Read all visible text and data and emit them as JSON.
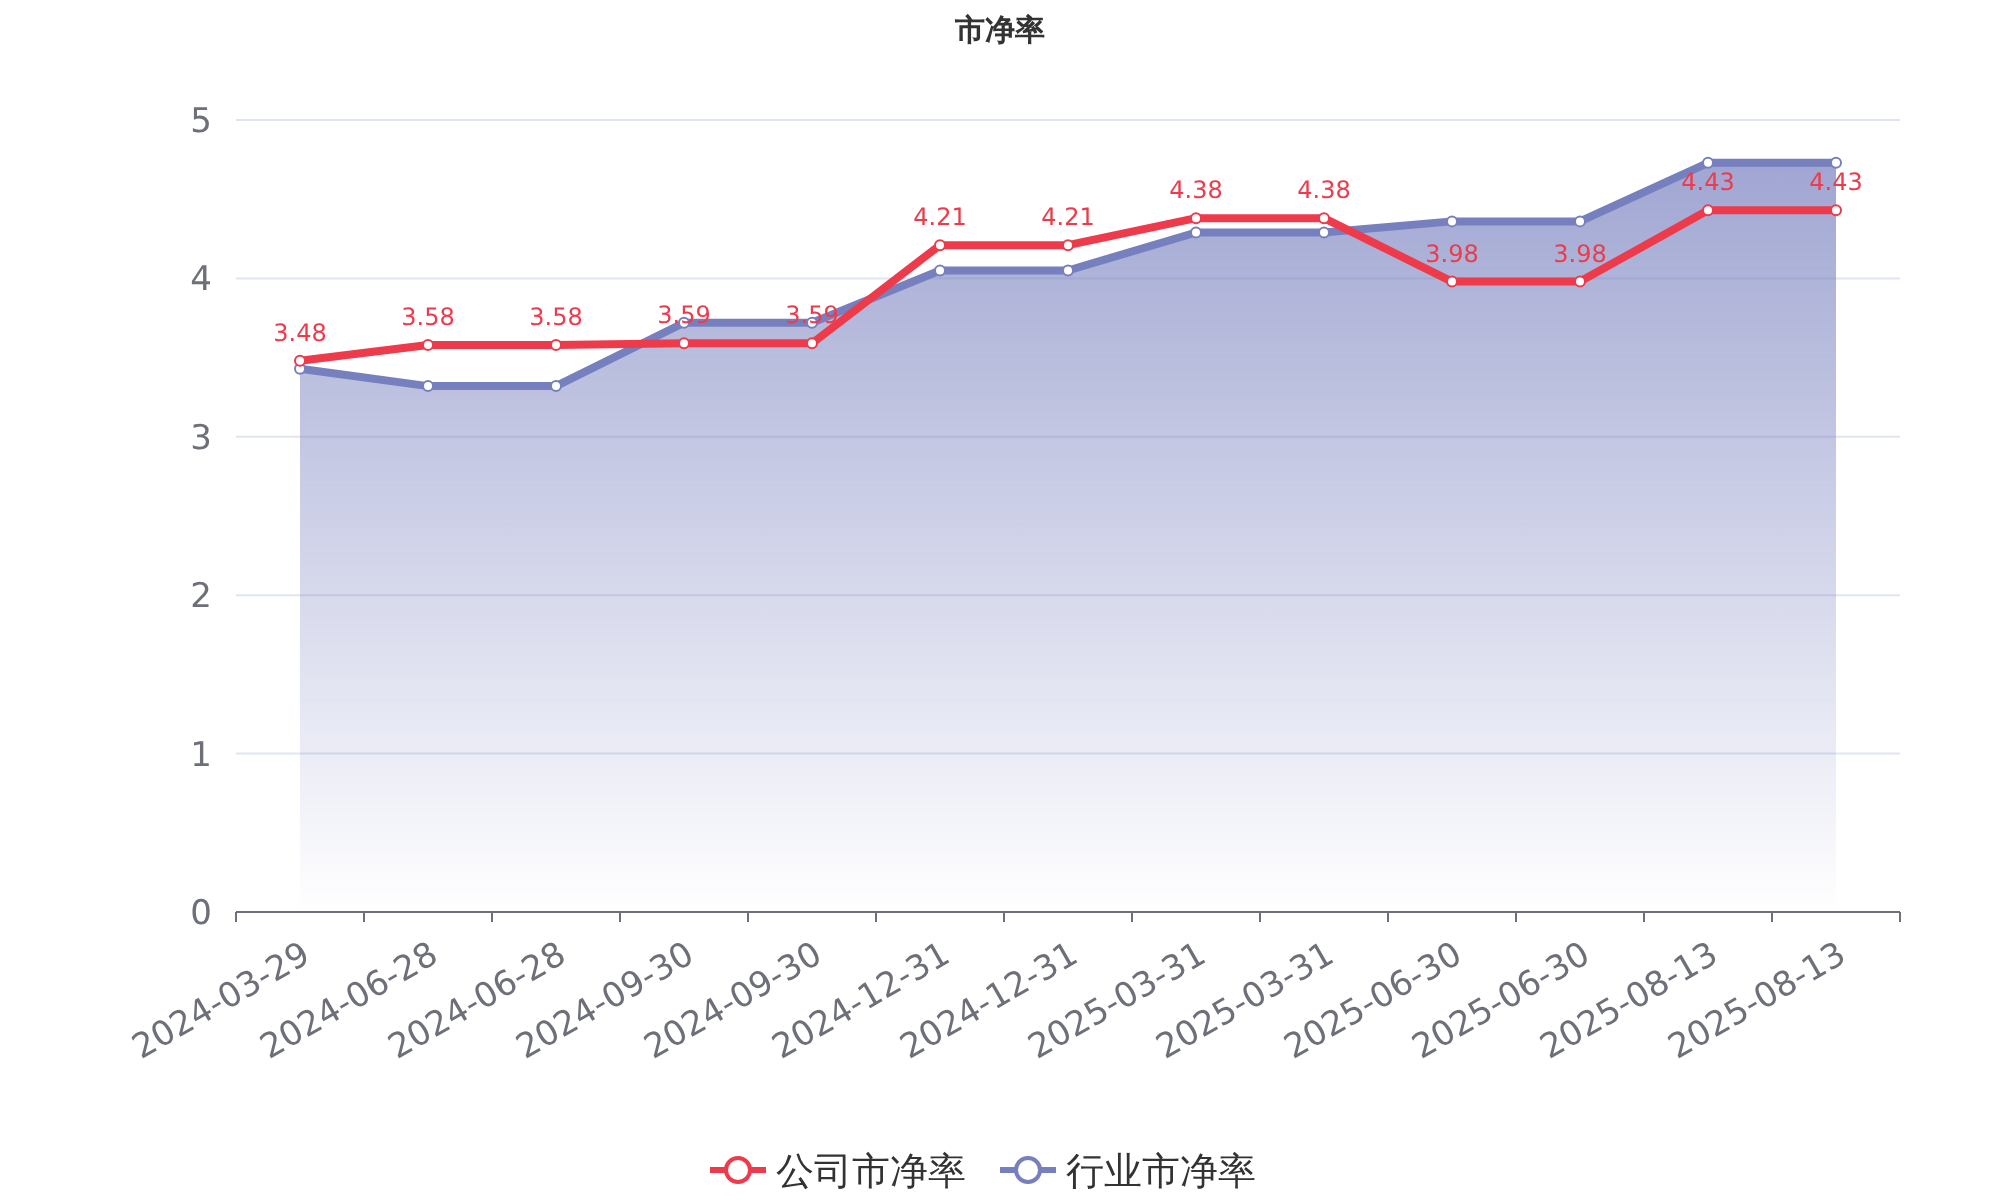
{
  "chart_data": {
    "type": "line",
    "title": "市净率",
    "categories": [
      "2024-03-29",
      "2024-06-28",
      "2024-06-28",
      "2024-09-30",
      "2024-09-30",
      "2024-12-31",
      "2024-12-31",
      "2025-03-31",
      "2025-03-31",
      "2025-06-30",
      "2025-06-30",
      "2025-08-13",
      "2025-08-13"
    ],
    "series": [
      {
        "name": "公司市净率",
        "color": "#ee3b4b",
        "values": [
          3.48,
          3.58,
          3.58,
          3.59,
          3.59,
          4.21,
          4.21,
          4.38,
          4.38,
          3.98,
          3.98,
          4.43,
          4.43
        ],
        "value_labels": [
          "3.48",
          "3.58",
          "3.58",
          "3.59",
          "3.59",
          "4.21",
          "4.21",
          "4.38",
          "4.38",
          "3.98",
          "3.98",
          "4.43",
          "4.43"
        ]
      },
      {
        "name": "行业市净率",
        "color": "#7780bf",
        "type": "area",
        "values": [
          3.43,
          3.32,
          3.32,
          3.72,
          3.72,
          4.05,
          4.05,
          4.29,
          4.29,
          4.36,
          4.36,
          4.73,
          4.73
        ]
      }
    ],
    "ylim": [
      0,
      5
    ],
    "yticks": [
      0,
      1,
      2,
      3,
      4,
      5
    ],
    "grid": "y",
    "legend": "bottom",
    "marker": "circle",
    "line_style": "solid"
  }
}
